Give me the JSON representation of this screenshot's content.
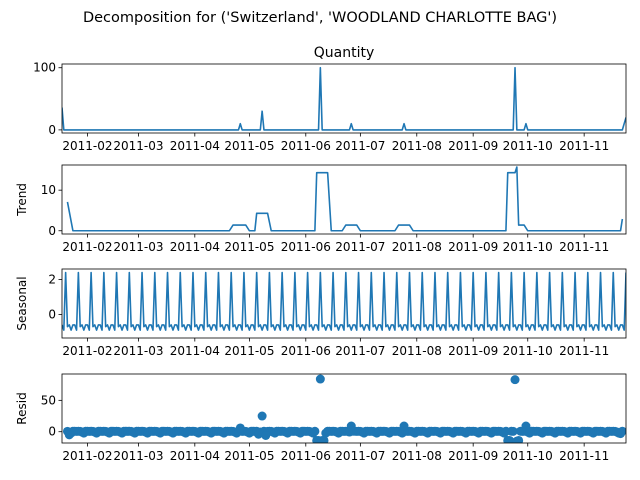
{
  "figure": {
    "suptitle": "Decomposition for ('Switzerland', 'WOODLAND CHARLOTTE BAG')"
  },
  "colors": {
    "line": "#1f77b4",
    "axis": "#000000",
    "background": "#ffffff"
  },
  "x_axis": {
    "start": "2011-01-18",
    "end": "2011-11-24",
    "ticks": [
      {
        "date": "2011-02-01",
        "label": "2011-02"
      },
      {
        "date": "2011-03-01",
        "label": "2011-03"
      },
      {
        "date": "2011-04-01",
        "label": "2011-04"
      },
      {
        "date": "2011-05-01",
        "label": "2011-05"
      },
      {
        "date": "2011-06-01",
        "label": "2011-06"
      },
      {
        "date": "2011-07-01",
        "label": "2011-07"
      },
      {
        "date": "2011-08-01",
        "label": "2011-08"
      },
      {
        "date": "2011-09-01",
        "label": "2011-09"
      },
      {
        "date": "2011-10-01",
        "label": "2011-10"
      },
      {
        "date": "2011-11-01",
        "label": "2011-11"
      }
    ]
  },
  "chart_data": [
    {
      "type": "line",
      "title": "Quantity",
      "ylabel": "",
      "ylim": [
        -5,
        106
      ],
      "yticks": [
        0,
        100
      ],
      "baseline": 0,
      "series": [
        {
          "points": [
            {
              "x": "2011-01-18",
              "y": 36
            },
            {
              "x": "2011-01-19",
              "y": 0
            },
            {
              "x": "2011-04-25",
              "y": 0
            },
            {
              "x": "2011-04-26",
              "y": 10
            },
            {
              "x": "2011-04-27",
              "y": 0
            },
            {
              "x": "2011-05-07",
              "y": 0
            },
            {
              "x": "2011-05-08",
              "y": 30
            },
            {
              "x": "2011-05-09",
              "y": 0
            },
            {
              "x": "2011-06-08",
              "y": 0
            },
            {
              "x": "2011-06-09",
              "y": 100
            },
            {
              "x": "2011-06-10",
              "y": 0
            },
            {
              "x": "2011-06-25",
              "y": 0
            },
            {
              "x": "2011-06-26",
              "y": 10
            },
            {
              "x": "2011-06-27",
              "y": 0
            },
            {
              "x": "2011-07-24",
              "y": 0
            },
            {
              "x": "2011-07-25",
              "y": 10
            },
            {
              "x": "2011-07-26",
              "y": 0
            },
            {
              "x": "2011-09-23",
              "y": 0
            },
            {
              "x": "2011-09-24",
              "y": 100
            },
            {
              "x": "2011-09-25",
              "y": 0
            },
            {
              "x": "2011-09-29",
              "y": 0
            },
            {
              "x": "2011-09-30",
              "y": 10
            },
            {
              "x": "2011-10-01",
              "y": 0
            },
            {
              "x": "2011-11-22",
              "y": 0
            },
            {
              "x": "2011-11-24",
              "y": 20
            }
          ]
        }
      ]
    },
    {
      "type": "line",
      "title": "",
      "ylabel": "Trend",
      "ylim": [
        -0.8,
        16.2
      ],
      "yticks": [
        0,
        10
      ],
      "series": [
        {
          "points": [
            {
              "x": "2011-01-21",
              "y": 7.1
            },
            {
              "x": "2011-01-24",
              "y": 0
            },
            {
              "x": "2011-04-20",
              "y": 0
            },
            {
              "x": "2011-04-22",
              "y": 1.4
            },
            {
              "x": "2011-04-29",
              "y": 1.4
            },
            {
              "x": "2011-05-01",
              "y": 0
            },
            {
              "x": "2011-05-04",
              "y": 0
            },
            {
              "x": "2011-05-05",
              "y": 4.3
            },
            {
              "x": "2011-05-11",
              "y": 4.3
            },
            {
              "x": "2011-05-13",
              "y": 0
            },
            {
              "x": "2011-06-06",
              "y": 0
            },
            {
              "x": "2011-06-07",
              "y": 14.3
            },
            {
              "x": "2011-06-13",
              "y": 14.3
            },
            {
              "x": "2011-06-15",
              "y": 0
            },
            {
              "x": "2011-06-21",
              "y": 0
            },
            {
              "x": "2011-06-23",
              "y": 1.4
            },
            {
              "x": "2011-06-29",
              "y": 1.4
            },
            {
              "x": "2011-07-01",
              "y": 0
            },
            {
              "x": "2011-07-20",
              "y": 0
            },
            {
              "x": "2011-07-22",
              "y": 1.4
            },
            {
              "x": "2011-07-28",
              "y": 1.4
            },
            {
              "x": "2011-07-30",
              "y": 0
            },
            {
              "x": "2011-09-19",
              "y": 0
            },
            {
              "x": "2011-09-20",
              "y": 14.3
            },
            {
              "x": "2011-09-24",
              "y": 14.3
            },
            {
              "x": "2011-09-25",
              "y": 15.7
            },
            {
              "x": "2011-09-26",
              "y": 1.4
            },
            {
              "x": "2011-09-29",
              "y": 1.4
            },
            {
              "x": "2011-10-01",
              "y": 0
            },
            {
              "x": "2011-11-21",
              "y": 0
            },
            {
              "x": "2011-11-22",
              "y": 2.9
            }
          ]
        }
      ]
    },
    {
      "type": "line",
      "title": "",
      "ylabel": "Seasonal",
      "ylim": [
        -1.35,
        2.6
      ],
      "yticks": [
        0,
        2
      ],
      "pattern": {
        "start": "2011-01-18",
        "end": "2011-11-24",
        "period_days": 7,
        "cycle": [
          -0.6,
          -0.9,
          2.4,
          -0.7,
          -0.6,
          -0.9,
          -0.6
        ]
      }
    },
    {
      "type": "scatter",
      "title": "",
      "ylabel": "Resid",
      "ylim": [
        -18,
        92
      ],
      "yticks": [
        0,
        50
      ],
      "baseline": 0,
      "point_style": {
        "radius": 4.5
      },
      "baseline_noise": {
        "start": "2011-01-21",
        "end": "2011-11-22",
        "period_days": 7,
        "cycle": [
          0.6,
          -0.5,
          -2.2,
          0.7,
          0.8,
          0.5,
          0.7
        ]
      },
      "series": [
        {
          "points": [
            {
              "x": "2011-01-22",
              "y": -5
            },
            {
              "x": "2011-04-26",
              "y": 6
            },
            {
              "x": "2011-05-06",
              "y": -4
            },
            {
              "x": "2011-05-08",
              "y": 25
            },
            {
              "x": "2011-05-10",
              "y": -6
            },
            {
              "x": "2011-06-07",
              "y": -14
            },
            {
              "x": "2011-06-08",
              "y": -14
            },
            {
              "x": "2011-06-09",
              "y": 84
            },
            {
              "x": "2011-06-10",
              "y": -14
            },
            {
              "x": "2011-06-11",
              "y": -14
            },
            {
              "x": "2011-06-26",
              "y": 9
            },
            {
              "x": "2011-07-25",
              "y": 9
            },
            {
              "x": "2011-09-20",
              "y": -14
            },
            {
              "x": "2011-09-21",
              "y": -14
            },
            {
              "x": "2011-09-24",
              "y": 83
            },
            {
              "x": "2011-09-25",
              "y": -15
            },
            {
              "x": "2011-09-26",
              "y": -14
            },
            {
              "x": "2011-09-30",
              "y": 9
            },
            {
              "x": "2011-11-21",
              "y": -3
            }
          ]
        }
      ]
    }
  ]
}
